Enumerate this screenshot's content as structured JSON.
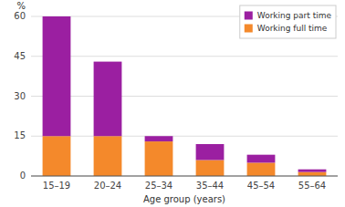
{
  "chart_data": {
    "type": "bar",
    "stacked": true,
    "categories": [
      "15–19",
      "20–24",
      "25–34",
      "35–44",
      "45–54",
      "55–64"
    ],
    "series": [
      {
        "name": "Working full time",
        "color": "#f4892b",
        "values": [
          15,
          15,
          13,
          6,
          5,
          1.5
        ]
      },
      {
        "name": "Working part time",
        "color": "#9b1fa1",
        "values": [
          45,
          28,
          2,
          6,
          3,
          1
        ]
      }
    ],
    "xlabel": "Age group (years)",
    "ylabel": "%",
    "ylim": [
      0,
      60
    ],
    "yticks": [
      0,
      15,
      30,
      45,
      60
    ],
    "grid": true,
    "legend": "upper right"
  }
}
